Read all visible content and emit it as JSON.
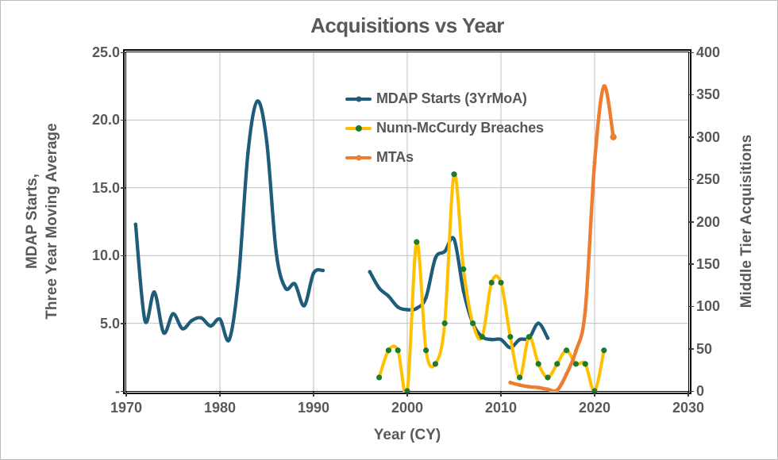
{
  "chart_data": {
    "type": "line",
    "title": "Acquisitions vs Year",
    "x_axis": {
      "label": "Year (CY)",
      "min": 1970,
      "max": 2030,
      "tick_values": [
        1970,
        1980,
        1990,
        2000,
        2010,
        2020,
        2030
      ],
      "tick_labels": [
        "1970",
        "1980",
        "1990",
        "2000",
        "2010",
        "2020",
        "2030"
      ],
      "gridline_years": [
        1980,
        1990,
        2000,
        2010,
        2020
      ]
    },
    "y_axis_left": {
      "label_line1": "MDAP Starts,",
      "label_line2": "Three Year Moving Average",
      "min": 0,
      "max": 25,
      "tick_values": [
        25,
        20,
        15,
        10,
        5,
        0
      ],
      "tick_labels": [
        "25.0",
        "20.0",
        "15.0",
        "10.0",
        "5.0",
        "-"
      ],
      "gridline_values": [
        5,
        10,
        15,
        20
      ]
    },
    "y_axis_right": {
      "label": "Middle Tier Acquisitions",
      "min": 0,
      "max": 400,
      "tick_values": [
        400,
        350,
        300,
        250,
        200,
        150,
        100,
        50,
        0
      ],
      "tick_labels": [
        "400",
        "350",
        "300",
        "250",
        "200",
        "150",
        "100",
        "50",
        "0"
      ]
    },
    "grid_color": "#BFBFBF",
    "axis_text_color": "#595959",
    "legend_position": "inside-top-center",
    "series": [
      {
        "name": "MDAP Starts (3YrMoA)",
        "axis": "left",
        "color": "#1F5C7A",
        "marker_color": "#1F5C7A",
        "line_width": 4.3,
        "marker_radius": 2.3,
        "segments": [
          [
            [
              1971,
              12.3
            ],
            [
              1972,
              5.2
            ],
            [
              1973,
              7.3
            ],
            [
              1974,
              4.3
            ],
            [
              1975,
              5.7
            ],
            [
              1976,
              4.6
            ],
            [
              1977,
              5.2
            ],
            [
              1978,
              5.4
            ],
            [
              1979,
              4.8
            ],
            [
              1980,
              5.3
            ],
            [
              1981,
              3.8
            ],
            [
              1982,
              8.4
            ],
            [
              1983,
              17.6
            ],
            [
              1984,
              21.4
            ],
            [
              1985,
              18.4
            ],
            [
              1986,
              10.3
            ],
            [
              1987,
              7.6
            ],
            [
              1988,
              7.9
            ],
            [
              1989,
              6.3
            ],
            [
              1990,
              8.7
            ],
            [
              1991,
              8.9
            ]
          ],
          [
            [
              1996,
              8.8
            ],
            [
              1997,
              7.6
            ],
            [
              1998,
              7.0
            ],
            [
              1999,
              6.2
            ],
            [
              2000,
              6.0
            ],
            [
              2001,
              6.1
            ],
            [
              2002,
              6.9
            ],
            [
              2003,
              9.8
            ],
            [
              2004,
              10.3
            ],
            [
              2005,
              11.2
            ],
            [
              2006,
              7.4
            ],
            [
              2007,
              5.0
            ],
            [
              2008,
              4.0
            ],
            [
              2009,
              3.8
            ],
            [
              2010,
              3.8
            ],
            [
              2011,
              3.2
            ],
            [
              2012,
              3.8
            ],
            [
              2013,
              3.9
            ],
            [
              2014,
              5.0
            ],
            [
              2015,
              3.9
            ]
          ]
        ]
      },
      {
        "name": "Nunn-McCurdy Breaches",
        "axis": "left",
        "color": "#FFC000",
        "marker_color": "#1E7B2E",
        "line_width": 4,
        "marker_radius": 3.6,
        "segments": [
          [
            [
              1997,
              1
            ],
            [
              1998,
              3
            ],
            [
              1999,
              3
            ],
            [
              2000,
              0
            ],
            [
              2001,
              11
            ],
            [
              2002,
              3
            ],
            [
              2003,
              2
            ],
            [
              2004,
              5
            ],
            [
              2005,
              16
            ],
            [
              2006,
              9
            ],
            [
              2007,
              5
            ],
            [
              2008,
              4
            ],
            [
              2009,
              8
            ],
            [
              2010,
              8
            ],
            [
              2011,
              4
            ],
            [
              2012,
              1
            ],
            [
              2013,
              4
            ],
            [
              2014,
              2
            ],
            [
              2015,
              1
            ],
            [
              2016,
              2
            ],
            [
              2017,
              3
            ],
            [
              2018,
              2
            ],
            [
              2019,
              2
            ],
            [
              2020,
              0
            ],
            [
              2021,
              3
            ]
          ]
        ]
      },
      {
        "name": "MTAs",
        "axis": "right",
        "color": "#ED7D31",
        "marker_color": "#ED7D31",
        "line_width": 4.4,
        "marker_radius": 2.5,
        "end_marker_radius": 4.2,
        "segments": [
          [
            [
              2011,
              10
            ],
            [
              2012,
              7
            ],
            [
              2013,
              5
            ],
            [
              2014,
              4
            ],
            [
              2015,
              2
            ],
            [
              2016,
              1
            ],
            [
              2017,
              20
            ],
            [
              2018,
              47
            ],
            [
              2019,
              95
            ],
            [
              2020,
              270
            ],
            [
              2021,
              360
            ],
            [
              2022,
              300
            ]
          ]
        ]
      }
    ]
  }
}
